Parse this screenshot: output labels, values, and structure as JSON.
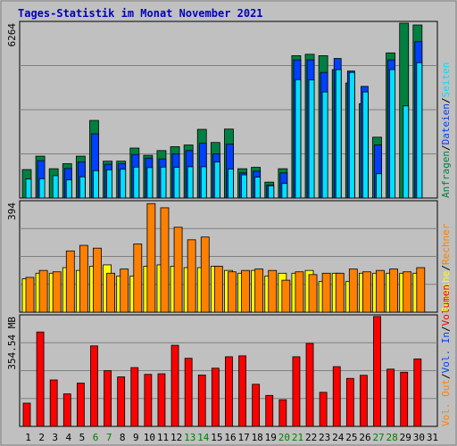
{
  "title": "Tages-Statistik im Monat November 2021",
  "colors": {
    "background": "#c0c0c0",
    "panel_border": "#000000",
    "title": "#0000c0",
    "anfragen": "#008040",
    "dateien": "#0040ff",
    "seiten": "#00e0ff",
    "besuche": "#ffff00",
    "rechner": "#ff8000",
    "volumen": "#ff0000",
    "weekend_label": "#008000",
    "label_black": "#000000"
  },
  "right_legend": {
    "top": [
      {
        "text": "Anfragen",
        "color": "#008040"
      },
      {
        "text": "Dateien",
        "color": "#0040ff"
      },
      {
        "text": "Seiten",
        "color": "#00e0ff"
      }
    ],
    "mid": [
      {
        "text": "Besuche",
        "color": "#ffff00"
      },
      {
        "text": "Rechner",
        "color": "#ff8000"
      }
    ],
    "bot": [
      {
        "text": "Vol. Out",
        "color": "#ff8000"
      },
      {
        "text": "Vol. In",
        "color": "#0040ff"
      },
      {
        "text": "Volumen",
        "color": "#ff0000"
      }
    ],
    "separator": "/"
  },
  "chart_data": {
    "type": "bar",
    "categories": [
      "1",
      "2",
      "3",
      "4",
      "5",
      "6",
      "7",
      "8",
      "9",
      "10",
      "11",
      "12",
      "13",
      "14",
      "15",
      "16",
      "17",
      "18",
      "19",
      "20",
      "21",
      "22",
      "23",
      "24",
      "25",
      "26",
      "27",
      "28",
      "29",
      "30"
    ],
    "weekend_days": [
      "6",
      "7",
      "13",
      "14",
      "20",
      "21",
      "27",
      "28"
    ],
    "x_extra_labels": [
      "31"
    ],
    "panels": [
      {
        "name": "requests",
        "ymax_label": "6264",
        "ymax": 6264,
        "series": [
          {
            "name": "Anfragen",
            "values": [
              1020,
              1500,
              1050,
              1230,
              1500,
              2780,
              1320,
              1320,
              1790,
              1530,
              1700,
              1840,
              1900,
              2460,
              1990,
              2470,
              1050,
              1100,
              570,
              1050,
              5100,
              5150,
              5100,
              4600,
              4120,
              3380,
              2180,
              5200,
              6264,
              6200
            ]
          },
          {
            "name": "Dateien",
            "values": [
              0,
              1340,
              0,
              1060,
              1290,
              2300,
              1210,
              1230,
              1560,
              1430,
              1400,
              1580,
              1700,
              1960,
              1580,
              1930,
              900,
              960,
              460,
              900,
              4950,
              4950,
              4500,
              5000,
              4550,
              4000,
              1900,
              4950,
              0,
              5600
            ]
          },
          {
            "name": "Seiten",
            "values": [
              680,
              690,
              800,
              650,
              760,
              980,
              1010,
              1030,
              1110,
              1090,
              1110,
              1100,
              1120,
              1120,
              1290,
              1040,
              830,
              750,
              440,
              520,
              4240,
              4230,
              3800,
              4600,
              4500,
              3800,
              870,
              4600,
              3300,
              4850
            ]
          }
        ]
      },
      {
        "name": "visits",
        "ymax_label": "394",
        "ymax": 394,
        "series": [
          {
            "name": "Besuche",
            "values": [
              120,
              140,
              140,
              160,
              150,
              165,
              170,
              130,
              130,
              165,
              170,
              165,
              160,
              160,
              165,
              150,
              140,
              150,
              130,
              140,
              140,
              150,
              110,
              140,
              110,
              140,
              140,
              140,
              140,
              140
            ]
          },
          {
            "name": "Rechner",
            "values": [
              125,
              150,
              145,
              220,
              240,
              230,
              140,
              155,
              245,
              390,
              375,
              305,
              260,
              270,
              165,
              145,
              150,
              155,
              150,
              115,
              145,
              135,
              140,
              140,
              155,
              145,
              150,
              155,
              145,
              160
            ]
          }
        ]
      },
      {
        "name": "volume",
        "ymax_label": "354.54 MB",
        "ymax": 354.54,
        "series": [
          {
            "name": "Volumen",
            "values": [
              75,
              305,
              150,
              105,
              140,
              260,
              180,
              160,
              190,
              168,
              170,
              262,
              220,
              166,
              188,
              225,
              228,
              136,
              100,
              86,
              225,
              268,
              110,
              193,
              155,
              165,
              355,
              185,
              175,
              218
            ]
          }
        ]
      }
    ]
  }
}
